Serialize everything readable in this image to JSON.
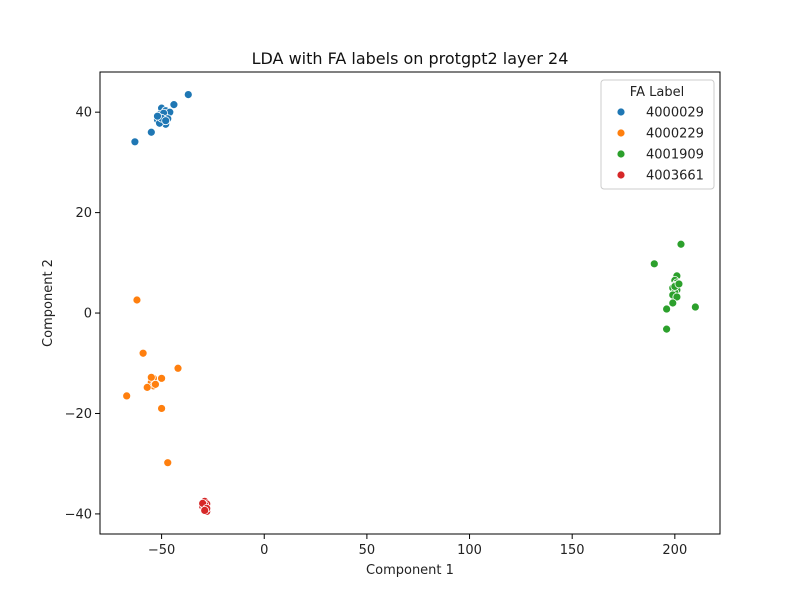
{
  "chart_data": {
    "type": "scatter",
    "title": "LDA with FA labels on protgpt2 layer 24",
    "xlabel": "Component 1",
    "ylabel": "Component 2",
    "xlim": [
      -80,
      222
    ],
    "ylim": [
      -44,
      48
    ],
    "xticks": [
      -50,
      0,
      50,
      100,
      150,
      200
    ],
    "yticks": [
      -40,
      -20,
      0,
      20,
      40
    ],
    "x_tick_labels": [
      "−50",
      "0",
      "50",
      "100",
      "150",
      "200"
    ],
    "y_tick_labels": [
      "−40",
      "−20",
      "0",
      "20",
      "40"
    ],
    "grid": false,
    "legend": {
      "title": "FA Label",
      "placement": "top-right"
    },
    "series": [
      {
        "name": "4000029",
        "color": "#1f77b4",
        "points": [
          [
            -37,
            43.5
          ],
          [
            -44,
            41.5
          ],
          [
            -63,
            34.1
          ],
          [
            -55,
            36
          ],
          [
            -50,
            40.8
          ],
          [
            -48,
            40.3
          ],
          [
            -46,
            40.0
          ],
          [
            -51,
            39.5
          ],
          [
            -49,
            39.0
          ],
          [
            -52,
            38.5
          ],
          [
            -50,
            38.0
          ],
          [
            -48,
            37.6
          ],
          [
            -51,
            37.8
          ],
          [
            -49,
            39.8
          ],
          [
            -47,
            38.7
          ],
          [
            -50,
            38.8
          ],
          [
            -52,
            39.2
          ],
          [
            -48,
            38.3
          ]
        ]
      },
      {
        "name": "4000229",
        "color": "#ff7f0e",
        "points": [
          [
            -62,
            2.6
          ],
          [
            -59,
            -8
          ],
          [
            -42,
            -11
          ],
          [
            -50,
            -13
          ],
          [
            -54,
            -13
          ],
          [
            -55,
            -13.8
          ],
          [
            -54,
            -14.5
          ],
          [
            -57,
            -14.8
          ],
          [
            -53,
            -14.2
          ],
          [
            -55,
            -12.8
          ],
          [
            -67,
            -16.5
          ],
          [
            -50,
            -19
          ],
          [
            -47,
            -29.8
          ]
        ]
      },
      {
        "name": "4001909",
        "color": "#2ca02c",
        "points": [
          [
            203,
            13.7
          ],
          [
            190,
            9.8
          ],
          [
            201,
            7.4
          ],
          [
            200,
            6.5
          ],
          [
            201,
            6.0
          ],
          [
            200,
            5.5
          ],
          [
            199,
            5.0
          ],
          [
            201,
            4.6
          ],
          [
            200,
            4.1
          ],
          [
            199,
            3.6
          ],
          [
            201,
            3.2
          ],
          [
            200,
            5.3
          ],
          [
            202,
            5.8
          ],
          [
            199,
            2.0
          ],
          [
            196,
            0.8
          ],
          [
            210,
            1.2
          ],
          [
            196,
            -3.2
          ]
        ]
      },
      {
        "name": "4003661",
        "color": "#d62728",
        "points": [
          [
            -29,
            -37.5
          ],
          [
            -28,
            -38.0
          ],
          [
            -30,
            -38.5
          ],
          [
            -29,
            -39.0
          ],
          [
            -28,
            -39.5
          ],
          [
            -29,
            -38.2
          ],
          [
            -30,
            -37.9
          ],
          [
            -28,
            -38.9
          ],
          [
            -29,
            -39.3
          ]
        ]
      }
    ]
  }
}
